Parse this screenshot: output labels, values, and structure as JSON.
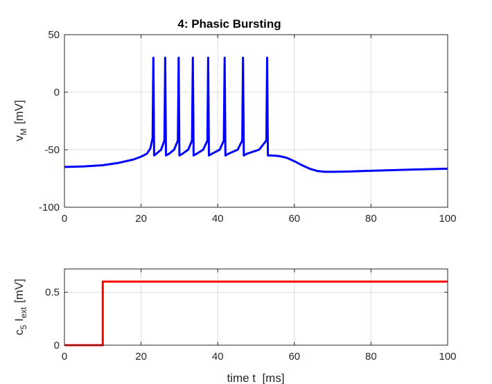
{
  "chart_data": [
    {
      "type": "line",
      "title": "4: Phasic Bursting",
      "ylabel": {
        "main": "v",
        "sub": "M",
        "unit": "[mV]"
      },
      "xlabel": "",
      "xlim": [
        0,
        100
      ],
      "ylim": [
        -100,
        50
      ],
      "xticks": [
        "0",
        "20",
        "40",
        "60",
        "80",
        "100"
      ],
      "yticks": [
        "-100",
        "-50",
        "0",
        "50"
      ],
      "grid": true,
      "series": [
        {
          "color": "#0000ff",
          "x": [
            0,
            5,
            10,
            14,
            18,
            20,
            21.5,
            22.4,
            23.0,
            23.2,
            23.4,
            24.0,
            25.2,
            26.1,
            26.3,
            26.5,
            27.3,
            28.6,
            29.6,
            29.8,
            30.0,
            30.8,
            32.3,
            33.3,
            33.5,
            33.7,
            34.5,
            36.2,
            37.3,
            37.5,
            37.7,
            38.5,
            40.5,
            41.6,
            41.8,
            42.0,
            42.8,
            45.2,
            46.4,
            46.6,
            46.8,
            47.6,
            50.8,
            52.7,
            52.9,
            53.1,
            54,
            56,
            58,
            60,
            62,
            64,
            66,
            68,
            70,
            74,
            80,
            90,
            100
          ],
          "y": [
            -65,
            -64.5,
            -63.5,
            -61.5,
            -58.5,
            -56,
            -53.5,
            -49,
            -40,
            30,
            -55,
            -53.5,
            -50,
            -42,
            30,
            -55,
            -53.5,
            -50,
            -42,
            30,
            -55,
            -53.5,
            -50,
            -42,
            30,
            -55,
            -53.5,
            -50,
            -42,
            30,
            -55,
            -53.5,
            -50,
            -42,
            30,
            -55,
            -53.5,
            -50,
            -42,
            30,
            -55,
            -53.5,
            -50,
            -42,
            30,
            -55,
            -55,
            -55.5,
            -57,
            -60,
            -63.5,
            -66.5,
            -68.5,
            -69.2,
            -69.2,
            -69,
            -68.3,
            -67.3,
            -66.5
          ]
        }
      ]
    },
    {
      "type": "line",
      "title": "",
      "ylabel": {
        "main": "c",
        "sub1": "5",
        "main2": " I",
        "sub2": "ext",
        "unit": "[mV]"
      },
      "xlabel": "time t  [ms]",
      "xlim": [
        0,
        100
      ],
      "ylim": [
        0,
        0.72
      ],
      "xticks": [
        "0",
        "20",
        "40",
        "60",
        "80",
        "100"
      ],
      "yticks": [
        "0",
        "0.5"
      ],
      "grid": true,
      "series": [
        {
          "color": "#ff0000",
          "x": [
            0,
            10,
            10,
            100
          ],
          "y": [
            0,
            0,
            0.6,
            0.6
          ]
        }
      ]
    }
  ]
}
